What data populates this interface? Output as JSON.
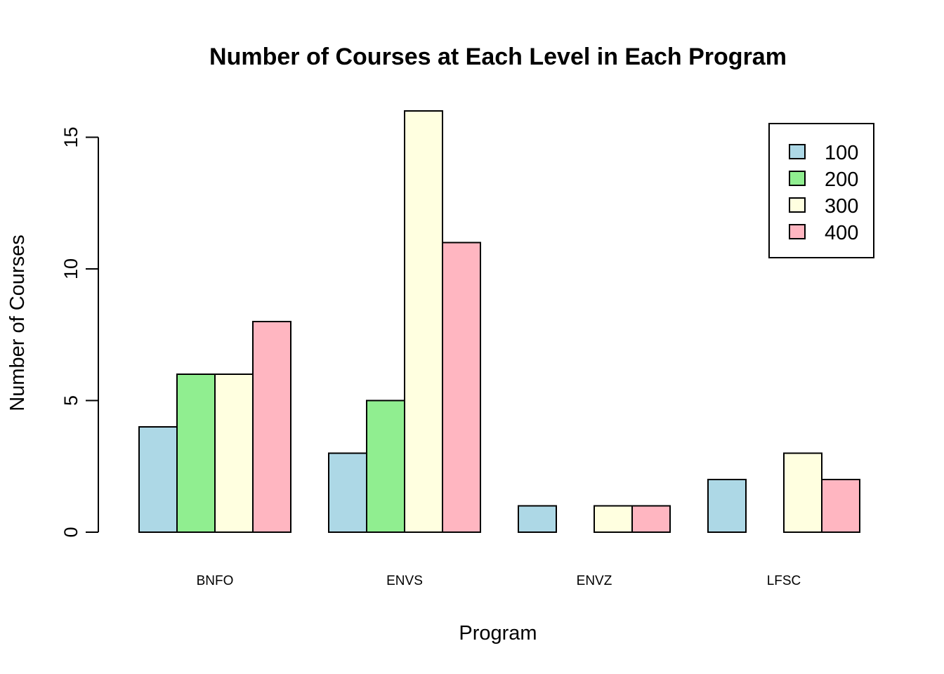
{
  "chart_data": {
    "type": "bar",
    "title": "Number of Courses at Each Level in Each Program",
    "xlabel": "Program",
    "ylabel": "Number of Courses",
    "categories": [
      "BNFO",
      "ENVS",
      "ENVZ",
      "LFSC"
    ],
    "series": [
      {
        "name": "100",
        "color": "#ADD8E6",
        "values": [
          4,
          3,
          1,
          2
        ]
      },
      {
        "name": "200",
        "color": "#90EE90",
        "values": [
          6,
          5,
          0,
          0
        ]
      },
      {
        "name": "300",
        "color": "#FFFFE0",
        "values": [
          6,
          16,
          1,
          3
        ]
      },
      {
        "name": "400",
        "color": "#FFB6C1",
        "values": [
          8,
          11,
          1,
          2
        ]
      }
    ],
    "yticks": [
      0,
      5,
      10,
      15
    ],
    "ylim": [
      0,
      16
    ],
    "grid": false,
    "legend_position": "top-right"
  }
}
